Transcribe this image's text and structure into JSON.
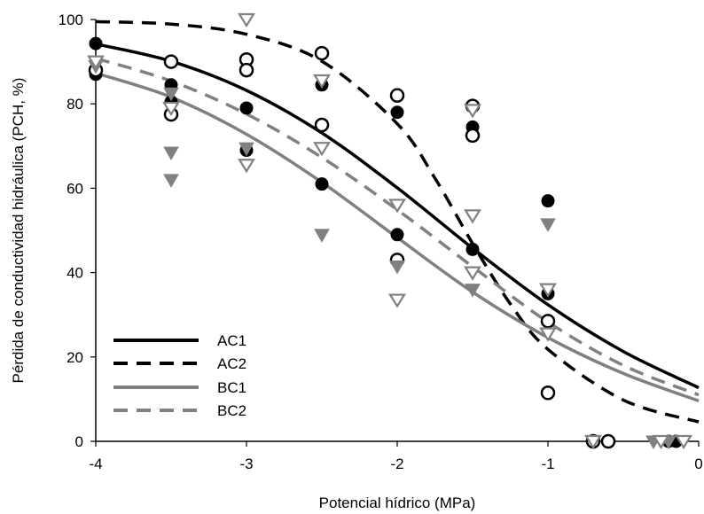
{
  "chart_data": {
    "type": "scatter",
    "xlabel": "Potencial hídrico (MPa)",
    "ylabel": "Pérdida de conductividad hidráulica (PCH, %)",
    "xlim": [
      -4,
      0
    ],
    "ylim": [
      0,
      100
    ],
    "xticks": [
      "-4",
      "-3",
      "-2",
      "-1",
      "0"
    ],
    "yticks": [
      "0",
      "20",
      "40",
      "60",
      "80",
      "100"
    ],
    "legend": {
      "placement": "bottom-left",
      "entries": [
        "AC1",
        "AC2",
        "BC1",
        "BC2"
      ]
    },
    "curves": [
      {
        "name": "AC1",
        "color": "#000000",
        "dash": "solid",
        "points": [
          [
            -4,
            94.2
          ],
          [
            -3.5,
            90.1
          ],
          [
            -3,
            83.2
          ],
          [
            -2.5,
            73.1
          ],
          [
            -2,
            60.1
          ],
          [
            -1.5,
            45.8
          ],
          [
            -1,
            32.4
          ],
          [
            -0.5,
            21.3
          ],
          [
            0,
            12.7
          ]
        ]
      },
      {
        "name": "AC2",
        "color": "#000000",
        "dash": "dashed",
        "points": [
          [
            -4,
            99.5
          ],
          [
            -3.5,
            98.9
          ],
          [
            -3,
            96.5
          ],
          [
            -2.5,
            90.1
          ],
          [
            -2,
            75.3
          ],
          [
            -1.75,
            62.4
          ],
          [
            -1.5,
            46.9
          ],
          [
            -1.25,
            32.6
          ],
          [
            -1,
            21.8
          ],
          [
            -0.5,
            9.8
          ],
          [
            0,
            4.6
          ]
        ]
      },
      {
        "name": "BC1",
        "color": "#808080",
        "dash": "solid",
        "points": [
          [
            -4,
            87.3
          ],
          [
            -3.5,
            81.6
          ],
          [
            -3,
            72.8
          ],
          [
            -2.5,
            61.4
          ],
          [
            -2,
            48.3
          ],
          [
            -1.5,
            35.4
          ],
          [
            -1,
            24.6
          ],
          [
            -0.5,
            16.1
          ],
          [
            0,
            9.6
          ]
        ]
      },
      {
        "name": "BC2",
        "color": "#808080",
        "dash": "dashed",
        "points": [
          [
            -4,
            90.8
          ],
          [
            -3.5,
            85.4
          ],
          [
            -3,
            77.6
          ],
          [
            -2.5,
            67.3
          ],
          [
            -2,
            54.9
          ],
          [
            -1.5,
            41.4
          ],
          [
            -1,
            28.3
          ],
          [
            -0.5,
            18.0
          ],
          [
            0,
            11.0
          ]
        ]
      }
    ],
    "series": [
      {
        "name": "AC1",
        "marker": "filled-circle",
        "color": "#000000",
        "points": [
          [
            -4,
            94.3
          ],
          [
            -4,
            87
          ],
          [
            -3.5,
            84.5
          ],
          [
            -3.5,
            80.5
          ],
          [
            -3,
            79
          ],
          [
            -3,
            69
          ],
          [
            -2.5,
            84.5
          ],
          [
            -2.5,
            61
          ],
          [
            -2,
            78
          ],
          [
            -2,
            49
          ],
          [
            -1.5,
            74.5
          ],
          [
            -1.5,
            45.5
          ],
          [
            -1,
            57
          ],
          [
            -1,
            35
          ],
          [
            -0.7,
            0
          ],
          [
            -0.2,
            0
          ],
          [
            -0.15,
            0
          ]
        ]
      },
      {
        "name": "AC2",
        "marker": "open-circle",
        "color": "#000000",
        "points": [
          [
            -4,
            88
          ],
          [
            -3.5,
            90
          ],
          [
            -3.5,
            77.5
          ],
          [
            -3,
            90.5
          ],
          [
            -3,
            88
          ],
          [
            -2.5,
            92
          ],
          [
            -2.5,
            75
          ],
          [
            -2,
            82
          ],
          [
            -2,
            43
          ],
          [
            -1.5,
            79.5
          ],
          [
            -1.5,
            72.5
          ],
          [
            -1,
            28.5
          ],
          [
            -1,
            11.5
          ],
          [
            -0.7,
            0
          ],
          [
            -0.6,
            0
          ]
        ]
      },
      {
        "name": "BC1",
        "marker": "filled-triangle-down",
        "color": "#808080",
        "points": [
          [
            -4,
            89
          ],
          [
            -3.5,
            82.5
          ],
          [
            -3.5,
            68.5
          ],
          [
            -3.5,
            62
          ],
          [
            -3,
            69.5
          ],
          [
            -2.5,
            49
          ],
          [
            -2,
            41.5
          ],
          [
            -1.5,
            36
          ],
          [
            -1,
            51.5
          ],
          [
            -0.7,
            0
          ],
          [
            -0.3,
            0
          ],
          [
            -0.2,
            0
          ]
        ]
      },
      {
        "name": "BC2",
        "marker": "open-triangle-down",
        "color": "#808080",
        "points": [
          [
            -4,
            90
          ],
          [
            -3.5,
            79
          ],
          [
            -3,
            100
          ],
          [
            -3,
            65.5
          ],
          [
            -2.5,
            85.5
          ],
          [
            -2.5,
            69.5
          ],
          [
            -2,
            56
          ],
          [
            -2,
            33.5
          ],
          [
            -1.5,
            78.5
          ],
          [
            -1.5,
            53.5
          ],
          [
            -1.5,
            40
          ],
          [
            -1,
            36
          ],
          [
            -1,
            25.5
          ],
          [
            -0.7,
            0
          ],
          [
            -0.25,
            0
          ],
          [
            -0.1,
            0
          ]
        ]
      }
    ]
  }
}
